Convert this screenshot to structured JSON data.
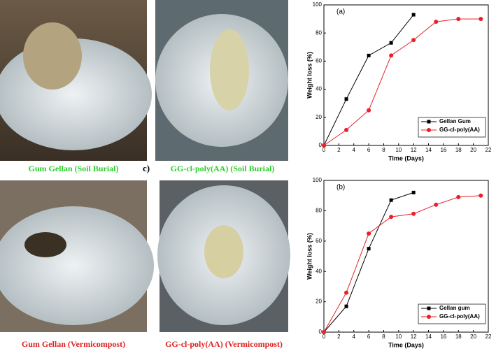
{
  "photos": [
    {
      "caption": "Gum Gellan (Soil Burial)",
      "color": "#2ecc2e"
    },
    {
      "caption": "GG-cl-poly(AA) (Soil Burial)",
      "color": "#2ecc2e"
    },
    {
      "caption": "Gum Gellan (Vermicompost)",
      "color": "#e02020"
    },
    {
      "caption": "GG-cl-poly(AA) (Vermicompost)",
      "color": "#e02020"
    }
  ],
  "panel_label": "c)",
  "chart_data": [
    {
      "type": "line",
      "title": "(a)",
      "x_label": "Time (Days)",
      "y_label": "Weight loss (%)",
      "xlim": [
        0,
        22
      ],
      "xticks": [
        0,
        2,
        4,
        6,
        8,
        10,
        12,
        14,
        16,
        18,
        20,
        22
      ],
      "ylim": [
        0,
        100
      ],
      "yticks": [
        0,
        20,
        40,
        60,
        80,
        100
      ],
      "legend": "lower right",
      "series": [
        {
          "name": "Gellan Gum",
          "color": "#000000",
          "marker": "square",
          "x": [
            0,
            3,
            6,
            9,
            12
          ],
          "values": [
            0,
            33,
            64,
            73,
            93
          ]
        },
        {
          "name": "GG-cl-poly(AA)",
          "color": "#e8202a",
          "marker": "circle",
          "x": [
            0,
            3,
            6,
            9,
            12,
            15,
            18,
            21
          ],
          "values": [
            0,
            11,
            25,
            64,
            75,
            88,
            90,
            90
          ]
        }
      ]
    },
    {
      "type": "line",
      "title": "(b)",
      "x_label": "Time (Days)",
      "y_label": "Weight loss (%)",
      "xlim": [
        0,
        22
      ],
      "xticks": [
        0,
        2,
        4,
        6,
        8,
        10,
        12,
        14,
        16,
        18,
        20,
        22
      ],
      "ylim": [
        0,
        100
      ],
      "yticks": [
        0,
        20,
        40,
        60,
        80,
        100
      ],
      "legend": "lower right",
      "series": [
        {
          "name": "Gellan gum",
          "color": "#000000",
          "marker": "square",
          "x": [
            0,
            3,
            6,
            9,
            12
          ],
          "values": [
            0,
            17,
            55,
            87,
            92
          ]
        },
        {
          "name": "GG-cl-poly(AA)",
          "color": "#e8202a",
          "marker": "circle",
          "x": [
            0,
            3,
            6,
            9,
            12,
            15,
            18,
            21
          ],
          "values": [
            0,
            26,
            65,
            76,
            78,
            84,
            89,
            90
          ]
        }
      ]
    }
  ]
}
